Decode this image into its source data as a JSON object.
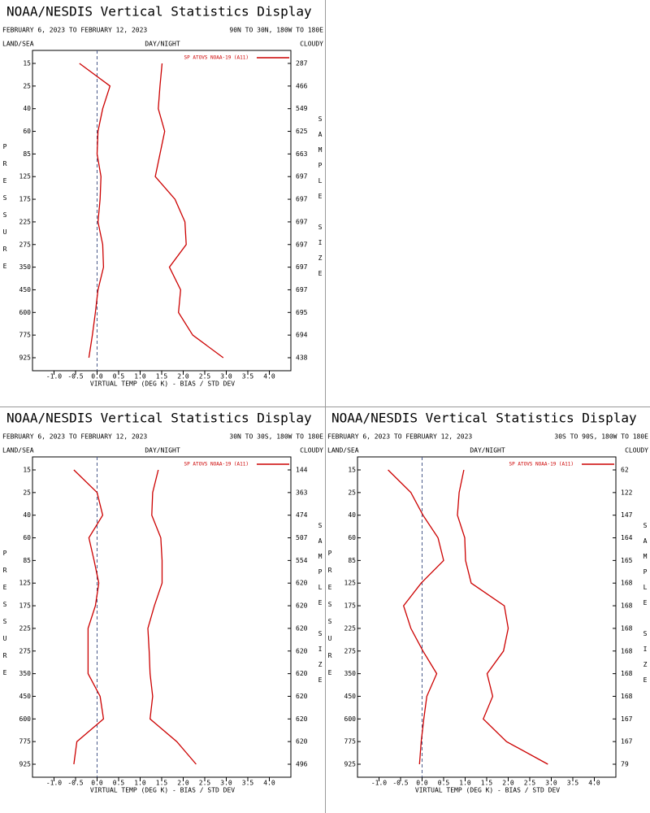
{
  "chart_data": [
    {
      "type": "line",
      "title": "NOAA/NESDIS Vertical Statistics Display",
      "subtitle": "FEBRUARY 6, 2023 TO FEBRUARY 12, 2023",
      "region": "90N TO 30N, 180W TO 180E",
      "land_sea": "LAND/SEA",
      "day_night": "DAY/NIGHT",
      "cloudy": "CLOUDY",
      "y_label": "PRESSURE",
      "y2_label": "SAMPLE SIZE",
      "x_label": "VIRTUAL TEMP (DEG K) - BIAS / STD DEV",
      "categories": [
        "15",
        "25",
        "40",
        "60",
        "85",
        "125",
        "175",
        "225",
        "275",
        "350",
        "450",
        "600",
        "775",
        "925"
      ],
      "sample_size": [
        "287",
        "466",
        "549",
        "625",
        "663",
        "697",
        "697",
        "697",
        "697",
        "697",
        "697",
        "695",
        "694",
        "438"
      ],
      "series": [
        {
          "name": "SP ATOVS NOAA-19 (A11)",
          "color": "#cc0000",
          "bias": [
            -0.41,
            0.3,
            0.13,
            0.02,
            0.0,
            0.09,
            0.07,
            0.02,
            0.13,
            0.15,
            0.02,
            -0.04,
            -0.11,
            -0.19
          ],
          "std_dev": [
            1.51,
            1.46,
            1.42,
            1.57,
            1.46,
            1.35,
            1.81,
            2.04,
            2.07,
            1.68,
            1.94,
            1.89,
            2.22,
            2.93
          ]
        }
      ],
      "xlim": [
        -1.5,
        4.5
      ],
      "xticks": [
        {
          "value": -1,
          "label": "-1.0"
        },
        {
          "value": -0.5,
          "label": "-0.5"
        },
        {
          "value": 0,
          "label": "0.0"
        },
        {
          "value": 0.5,
          "label": "0.5"
        },
        {
          "value": 1,
          "label": "1.0"
        },
        {
          "value": 1.5,
          "label": "1.5"
        },
        {
          "value": 2,
          "label": "2.0"
        },
        {
          "value": 2.5,
          "label": "2.5"
        },
        {
          "value": 3,
          "label": "3.0"
        },
        {
          "value": 3.5,
          "label": "3.5"
        },
        {
          "value": 4,
          "label": "4.0"
        }
      ],
      "reference_line": 0,
      "legend": "upper right"
    },
    {
      "type": "line",
      "title": "NOAA/NESDIS Vertical Statistics Display",
      "subtitle": "FEBRUARY 6, 2023 TO FEBRUARY 12, 2023",
      "region": "30N TO 30S, 180W TO 180E",
      "land_sea": "LAND/SEA",
      "day_night": "DAY/NIGHT",
      "cloudy": "CLOUDY",
      "y_label": "PRESSURE",
      "y2_label": "SAMPLE SIZE",
      "x_label": "VIRTUAL TEMP (DEG K) - BIAS / STD DEV",
      "categories": [
        "15",
        "25",
        "40",
        "60",
        "85",
        "125",
        "175",
        "225",
        "275",
        "350",
        "450",
        "600",
        "775",
        "925"
      ],
      "sample_size": [
        "144",
        "363",
        "474",
        "507",
        "554",
        "620",
        "620",
        "620",
        "620",
        "620",
        "620",
        "620",
        "620",
        "496"
      ],
      "series": [
        {
          "name": "SP ATOVS NOAA-19 (A11)",
          "color": "#cc0000",
          "bias": [
            -0.54,
            0.0,
            0.13,
            -0.19,
            -0.07,
            0.04,
            -0.04,
            -0.21,
            -0.21,
            -0.21,
            0.07,
            0.15,
            -0.47,
            -0.54
          ],
          "std_dev": [
            1.42,
            1.29,
            1.27,
            1.48,
            1.51,
            1.51,
            1.33,
            1.18,
            1.21,
            1.23,
            1.29,
            1.23,
            1.85,
            2.3
          ]
        }
      ],
      "xlim": [
        -1.5,
        4.5
      ],
      "xticks": [
        {
          "value": -1,
          "label": "-1.0"
        },
        {
          "value": -0.5,
          "label": "-0.5"
        },
        {
          "value": 0,
          "label": "0.0"
        },
        {
          "value": 0.5,
          "label": "0.5"
        },
        {
          "value": 1,
          "label": "1.0"
        },
        {
          "value": 1.5,
          "label": "1.5"
        },
        {
          "value": 2,
          "label": "2.0"
        },
        {
          "value": 2.5,
          "label": "2.5"
        },
        {
          "value": 3,
          "label": "3.0"
        },
        {
          "value": 3.5,
          "label": "3.5"
        },
        {
          "value": 4,
          "label": "4.0"
        }
      ],
      "reference_line": 0,
      "legend": "upper right"
    },
    {
      "type": "line",
      "title": "NOAA/NESDIS Vertical Statistics Display",
      "subtitle": "FEBRUARY 6, 2023 TO FEBRUARY 12, 2023",
      "region": "30S TO 90S, 180W TO 180E",
      "land_sea": "LAND/SEA",
      "day_night": "DAY/NIGHT",
      "cloudy": "CLOUDY",
      "y_label": "PRESSURE",
      "y2_label": "SAMPLE SIZE",
      "x_label": "VIRTUAL TEMP (DEG K) - BIAS / STD DEV",
      "categories": [
        "15",
        "25",
        "40",
        "60",
        "85",
        "125",
        "175",
        "225",
        "275",
        "350",
        "450",
        "600",
        "775",
        "925"
      ],
      "sample_size": [
        "62",
        "122",
        "147",
        "164",
        "165",
        "168",
        "168",
        "168",
        "168",
        "168",
        "168",
        "167",
        "167",
        "79"
      ],
      "series": [
        {
          "name": "SP ATOVS NOAA-19 (A11)",
          "color": "#cc0000",
          "bias": [
            -0.79,
            -0.26,
            0.02,
            0.37,
            0.5,
            -0.02,
            -0.43,
            -0.26,
            0.02,
            0.34,
            0.11,
            0.04,
            -0.02,
            -0.06
          ],
          "std_dev": [
            0.97,
            0.86,
            0.82,
            0.99,
            1.01,
            1.14,
            1.91,
            2.0,
            1.89,
            1.51,
            1.64,
            1.42,
            1.96,
            2.92
          ]
        }
      ],
      "xlim": [
        -1.5,
        4.5
      ],
      "xticks": [
        {
          "value": -1,
          "label": "-1.0"
        },
        {
          "value": -0.5,
          "label": "-0.5"
        },
        {
          "value": 0,
          "label": "0.0"
        },
        {
          "value": 0.5,
          "label": "0.5"
        },
        {
          "value": 1,
          "label": "1.0"
        },
        {
          "value": 1.5,
          "label": "1.5"
        },
        {
          "value": 2,
          "label": "2.0"
        },
        {
          "value": 2.5,
          "label": "2.5"
        },
        {
          "value": 3,
          "label": "3.0"
        },
        {
          "value": 3.5,
          "label": "3.5"
        },
        {
          "value": 4,
          "label": "4.0"
        }
      ],
      "reference_line": 0,
      "legend": "upper right"
    }
  ]
}
